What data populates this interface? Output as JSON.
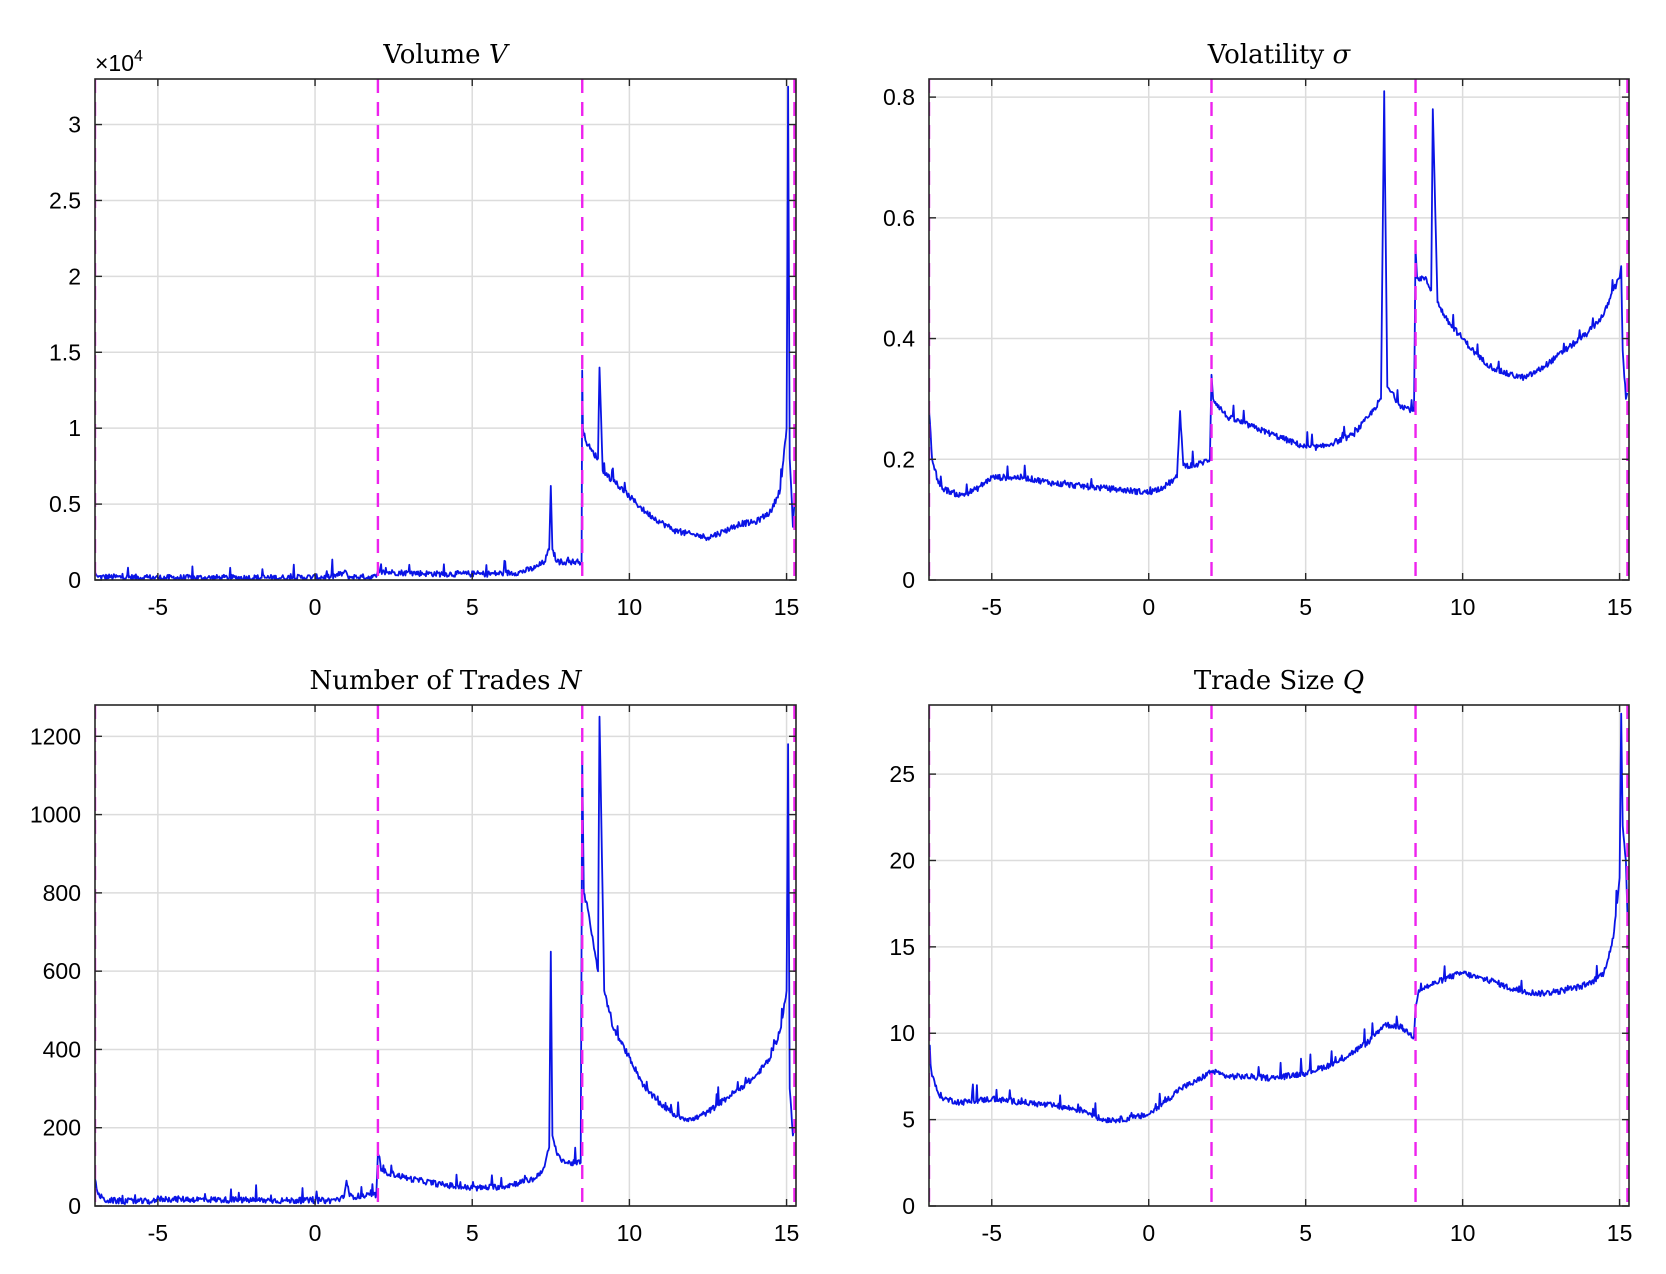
{
  "chart_data": [
    {
      "type": "line",
      "title": "Volume",
      "title_symbol": "V",
      "xlim": [
        -7,
        15.3
      ],
      "ylim": [
        0,
        3.3
      ],
      "y_multiplier": "×10",
      "y_multiplier_exp": "4",
      "xticks": [
        -5,
        0,
        5,
        10,
        15
      ],
      "xtick_labels": [
        "-5",
        "0",
        "5",
        "10",
        "15"
      ],
      "yticks": [
        0,
        0.5,
        1,
        1.5,
        2,
        2.5,
        3
      ],
      "ytick_labels": [
        "0",
        "0.5",
        "1",
        "1.5",
        "2",
        "2.5",
        "3"
      ],
      "grid": true,
      "vlines": [
        -7,
        2,
        8.5,
        15.25
      ],
      "colors": {
        "series": "#0a14e6",
        "vlines": "#ee22ee"
      },
      "series": [
        {
          "x": [
            -7,
            -6.95,
            -6.9,
            -6.5,
            -5,
            -3,
            -1,
            0.5,
            1,
            1.05,
            1.5,
            1.95,
            2,
            2.05,
            2.5,
            4,
            5.5,
            6.5,
            7,
            7.3,
            7.45,
            7.5,
            7.55,
            7.7,
            8,
            8.4,
            8.48,
            8.5,
            8.52,
            8.6,
            8.8,
            9,
            9.05,
            9.15,
            9.5,
            10,
            10.5,
            11,
            11.5,
            12,
            12.5,
            13,
            13.5,
            14,
            14.5,
            14.8,
            15,
            15.05,
            15.1,
            15.2,
            15.25
          ],
          "y": [
            0.05,
            0.03,
            0.02,
            0.02,
            0.015,
            0.015,
            0.015,
            0.02,
            0.05,
            0.02,
            0.02,
            0.02,
            0.06,
            0.05,
            0.05,
            0.04,
            0.04,
            0.05,
            0.08,
            0.12,
            0.2,
            0.62,
            0.2,
            0.12,
            0.12,
            0.12,
            0.12,
            1.38,
            1.0,
            0.92,
            0.85,
            0.8,
            1.4,
            0.72,
            0.65,
            0.55,
            0.45,
            0.38,
            0.32,
            0.3,
            0.28,
            0.32,
            0.37,
            0.38,
            0.45,
            0.6,
            1.0,
            3.25,
            0.8,
            0.35,
            0.5
          ]
        }
      ]
    },
    {
      "type": "line",
      "title": "Volatility",
      "title_symbol": "σ",
      "xlim": [
        -7,
        15.3
      ],
      "ylim": [
        0,
        0.83
      ],
      "xticks": [
        -5,
        0,
        5,
        10,
        15
      ],
      "xtick_labels": [
        "-5",
        "0",
        "5",
        "10",
        "15"
      ],
      "yticks": [
        0,
        0.2,
        0.4,
        0.6,
        0.8
      ],
      "ytick_labels": [
        "0",
        "0.2",
        "0.4",
        "0.6",
        "0.8"
      ],
      "grid": true,
      "vlines": [
        -7,
        2,
        8.5,
        15.25
      ],
      "colors": {
        "series": "#0a14e6",
        "vlines": "#ee22ee"
      },
      "series": [
        {
          "x": [
            -7,
            -6.9,
            -6.7,
            -6.5,
            -6,
            -5.5,
            -5,
            -4,
            -3,
            -2,
            -1,
            0,
            0.5,
            0.9,
            1,
            1.1,
            1.5,
            1.95,
            2,
            2.05,
            2.5,
            3,
            4,
            5,
            5.5,
            6,
            6.5,
            7,
            7.4,
            7.5,
            7.6,
            8,
            8.45,
            8.5,
            8.55,
            8.8,
            9,
            9.05,
            9.2,
            9.5,
            10,
            10.5,
            11,
            11.5,
            12,
            12.5,
            13,
            13.5,
            14,
            14.5,
            14.8,
            15,
            15.05,
            15.1,
            15.2,
            15.25
          ],
          "y": [
            0.28,
            0.2,
            0.16,
            0.15,
            0.14,
            0.15,
            0.17,
            0.17,
            0.16,
            0.155,
            0.15,
            0.145,
            0.155,
            0.17,
            0.28,
            0.19,
            0.19,
            0.2,
            0.34,
            0.3,
            0.27,
            0.26,
            0.24,
            0.22,
            0.22,
            0.23,
            0.24,
            0.27,
            0.3,
            0.81,
            0.32,
            0.29,
            0.28,
            0.55,
            0.5,
            0.5,
            0.48,
            0.78,
            0.46,
            0.43,
            0.4,
            0.37,
            0.35,
            0.34,
            0.335,
            0.35,
            0.37,
            0.39,
            0.41,
            0.44,
            0.48,
            0.5,
            0.52,
            0.38,
            0.3,
            0.31
          ]
        }
      ]
    },
    {
      "type": "line",
      "title": "Number of Trades",
      "title_symbol": "N",
      "xlim": [
        -7,
        15.3
      ],
      "ylim": [
        0,
        1280
      ],
      "xticks": [
        -5,
        0,
        5,
        10,
        15
      ],
      "xtick_labels": [
        "-5",
        "0",
        "5",
        "10",
        "15"
      ],
      "yticks": [
        0,
        200,
        400,
        600,
        800,
        1000,
        1200
      ],
      "ytick_labels": [
        "0",
        "200",
        "400",
        "600",
        "800",
        "1000",
        "1200"
      ],
      "grid": true,
      "vlines": [
        -7,
        2,
        8.5,
        15.25
      ],
      "colors": {
        "series": "#0a14e6",
        "vlines": "#ee22ee"
      },
      "series": [
        {
          "x": [
            -7,
            -6.9,
            -6.7,
            -6,
            -5.05,
            -5,
            -4.95,
            -3,
            -1,
            0.5,
            0.9,
            1,
            1.1,
            1.5,
            1.95,
            2,
            2.1,
            3,
            4,
            5,
            6,
            7,
            7.3,
            7.45,
            7.5,
            7.55,
            7.7,
            8,
            8.45,
            8.5,
            8.55,
            8.7,
            8.9,
            9,
            9.05,
            9.2,
            9.5,
            10,
            10.5,
            11,
            11.5,
            12,
            12.5,
            13,
            13.5,
            14,
            14.5,
            14.8,
            15,
            15.05,
            15.1,
            15.2,
            15.25
          ],
          "y": [
            70,
            30,
            15,
            12,
            12,
            25,
            18,
            16,
            14,
            14,
            20,
            65,
            25,
            25,
            28,
            135,
            90,
            70,
            55,
            45,
            50,
            70,
            100,
            150,
            650,
            180,
            130,
            110,
            110,
            1150,
            800,
            750,
            650,
            600,
            1250,
            550,
            450,
            380,
            300,
            260,
            230,
            220,
            240,
            270,
            300,
            330,
            380,
            450,
            550,
            1180,
            300,
            180,
            200
          ]
        }
      ]
    },
    {
      "type": "line",
      "title": "Trade Size",
      "title_symbol": "Q",
      "xlim": [
        -7,
        15.3
      ],
      "ylim": [
        0,
        29
      ],
      "xticks": [
        -5,
        0,
        5,
        10,
        15
      ],
      "xtick_labels": [
        "-5",
        "0",
        "5",
        "10",
        "15"
      ],
      "yticks": [
        0,
        5,
        10,
        15,
        20,
        25
      ],
      "ytick_labels": [
        "0",
        "5",
        "10",
        "15",
        "20",
        "25"
      ],
      "grid": true,
      "vlines": [
        -7,
        2,
        8.5,
        15.25
      ],
      "colors": {
        "series": "#0a14e6",
        "vlines": "#ee22ee"
      },
      "series": [
        {
          "x": [
            -7,
            -6.9,
            -6.7,
            -6.5,
            -6,
            -5,
            -4,
            -3,
            -2,
            -1.5,
            -1,
            -0.5,
            0,
            0.5,
            1,
            1.5,
            2,
            2.5,
            3,
            4,
            5,
            6,
            7,
            7.5,
            8,
            8.3,
            8.45,
            8.5,
            8.6,
            9,
            9.5,
            10,
            10.5,
            11,
            11.5,
            12,
            12.5,
            13,
            13.5,
            14,
            14.5,
            14.8,
            15,
            15.05,
            15.1,
            15.2,
            15.25
          ],
          "y": [
            9,
            7.5,
            6.5,
            6.2,
            6,
            6.2,
            6,
            5.8,
            5.5,
            5,
            5,
            5.1,
            5.3,
            6,
            6.8,
            7.2,
            7.8,
            7.5,
            7.5,
            7.4,
            7.7,
            8.3,
            9.5,
            10.5,
            10.4,
            10,
            9.8,
            11.5,
            12.5,
            12.8,
            13.2,
            13.5,
            13.2,
            13,
            12.6,
            12.4,
            12.3,
            12.4,
            12.6,
            12.8,
            13.5,
            15.5,
            19,
            28.5,
            22,
            20,
            17
          ]
        }
      ]
    }
  ]
}
